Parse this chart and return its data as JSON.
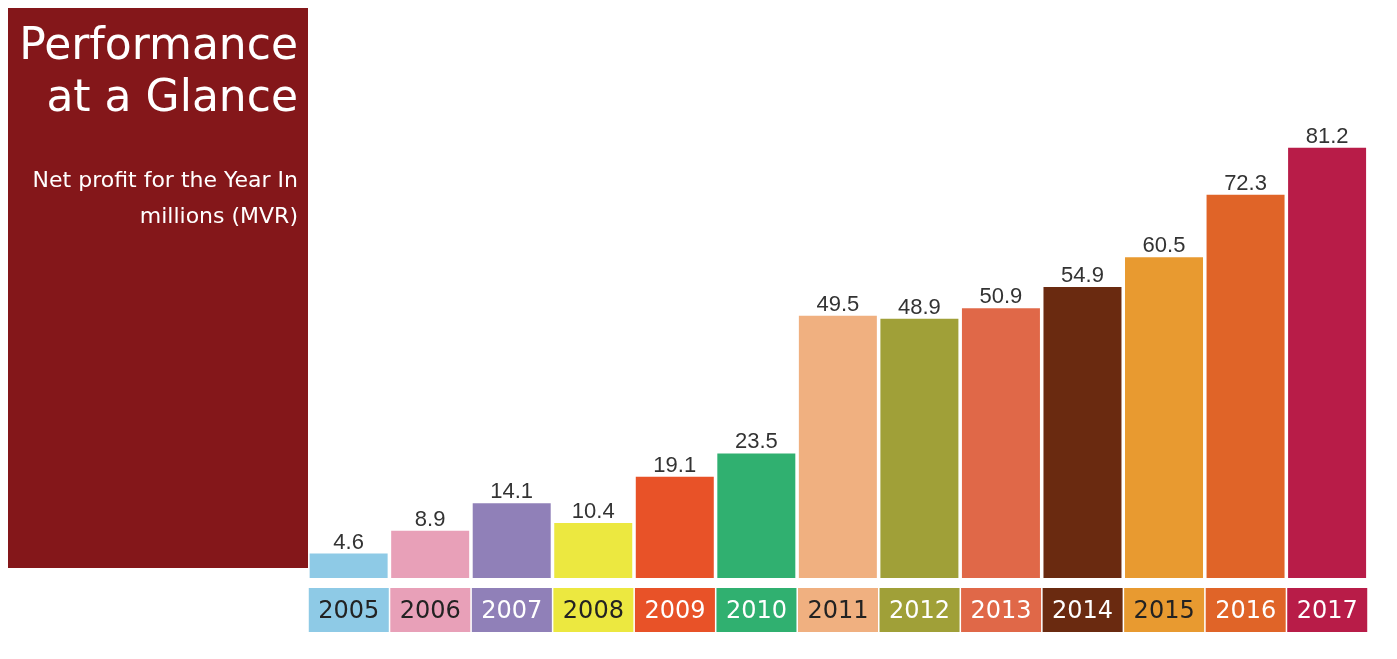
{
  "chart_data": {
    "type": "bar",
    "title": "Performance at a Glance",
    "subtitle": "Net profit for the Year In millions (MVR)",
    "categories": [
      "2005",
      "2006",
      "2007",
      "2008",
      "2009",
      "2010",
      "2011",
      "2012",
      "2013",
      "2014",
      "2015",
      "2016",
      "2017"
    ],
    "values": [
      4.6,
      8.9,
      14.1,
      10.4,
      19.1,
      23.5,
      49.5,
      48.9,
      50.9,
      54.9,
      60.5,
      72.3,
      81.2
    ],
    "colors": [
      "#8ecae6",
      "#e8a0b8",
      "#9080b8",
      "#ece840",
      "#e85228",
      "#30b070",
      "#f0b080",
      "#a0a038",
      "#e06848",
      "#6a2a10",
      "#e89a30",
      "#e06428",
      "#b81c48"
    ],
    "data_labels": true
  }
}
